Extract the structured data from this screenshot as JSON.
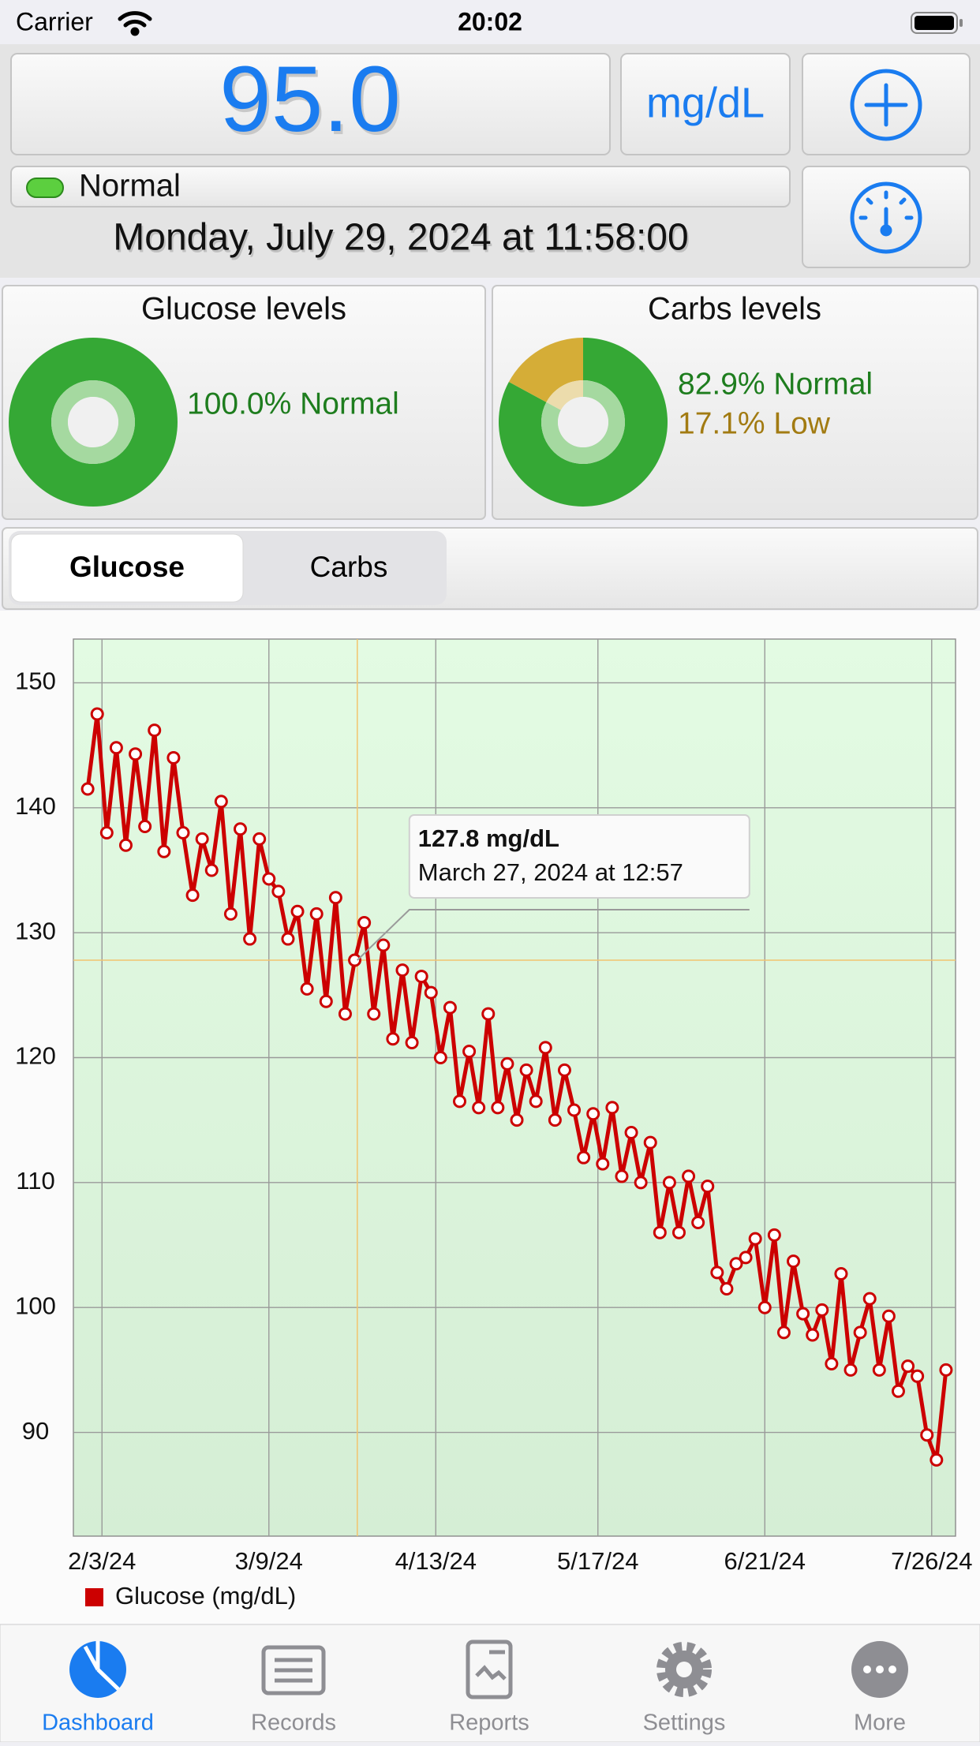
{
  "status_bar": {
    "carrier": "Carrier",
    "time": "20:02"
  },
  "reading": {
    "value": "95.0",
    "unit": "mg/dL",
    "status": "Normal",
    "date": "Monday, July 29, 2024 at 11:58:00"
  },
  "segments": [
    "Glucose",
    "Carbs"
  ],
  "tabs": [
    "Dashboard",
    "Records",
    "Reports",
    "Settings",
    "More"
  ],
  "chart_data": [
    {
      "type": "line",
      "x": [
        "1/31/24",
        "2/2/24",
        "2/4/24",
        "2/6/24",
        "2/8/24",
        "2/10/24",
        "2/12/24",
        "2/14/24",
        "2/16/24",
        "2/18/24",
        "2/20/24",
        "2/22/24",
        "2/24/24",
        "2/26/24",
        "2/28/24",
        "3/1/24",
        "3/3/24",
        "3/5/24",
        "3/7/24",
        "3/9/24",
        "3/11/24",
        "3/13/24",
        "3/15/24",
        "3/17/24",
        "3/19/24",
        "3/21/24",
        "3/23/24",
        "3/25/24",
        "3/27/24",
        "3/29/24",
        "3/31/24",
        "4/2/24",
        "4/4/24",
        "4/6/24",
        "4/8/24",
        "4/10/24",
        "4/12/24",
        "4/14/24",
        "4/16/24",
        "4/18/24",
        "4/20/24",
        "4/22/24",
        "4/24/24",
        "4/26/24",
        "4/28/24",
        "4/30/24",
        "5/2/24",
        "5/4/24",
        "5/6/24",
        "5/8/24",
        "5/10/24",
        "5/12/24",
        "5/14/24",
        "5/16/24",
        "5/18/24",
        "5/20/24",
        "5/22/24",
        "5/24/24",
        "5/26/24",
        "5/28/24",
        "5/30/24",
        "6/1/24",
        "6/3/24",
        "6/5/24",
        "6/7/24",
        "6/9/24",
        "6/11/24",
        "6/13/24",
        "6/15/24",
        "6/17/24",
        "6/19/24",
        "6/21/24",
        "6/23/24",
        "6/25/24",
        "6/27/24",
        "6/29/24",
        "7/1/24",
        "7/3/24",
        "7/5/24",
        "7/7/24",
        "7/9/24",
        "7/11/24",
        "7/13/24",
        "7/15/24",
        "7/17/24",
        "7/19/24",
        "7/21/24",
        "7/23/24",
        "7/25/24",
        "7/27/24",
        "7/29/24"
      ],
      "series": [
        {
          "name": "Glucose (mg/dL)",
          "color": "#cc0000",
          "values": [
            141.5,
            147.5,
            138,
            144.8,
            137,
            144.3,
            138.5,
            146.2,
            136.5,
            144,
            138,
            133,
            137.5,
            135,
            140.5,
            131.5,
            138.3,
            129.5,
            137.5,
            134.3,
            133.3,
            129.5,
            131.7,
            125.5,
            131.5,
            124.5,
            132.8,
            123.5,
            127.8,
            130.8,
            123.5,
            129,
            121.5,
            127,
            121.2,
            126.5,
            125.2,
            120,
            124,
            116.5,
            120.5,
            116,
            123.5,
            116,
            119.5,
            115,
            119,
            116.5,
            120.8,
            115,
            119,
            115.8,
            112,
            115.5,
            111.5,
            116,
            110.5,
            114,
            110,
            113.2,
            106,
            110,
            106,
            110.5,
            106.8,
            109.7,
            102.8,
            101.5,
            103.5,
            104,
            105.5,
            100,
            105.8,
            98,
            103.7,
            99.5,
            97.8,
            99.8,
            95.5,
            102.7,
            95,
            98,
            100.7,
            95,
            99.3,
            93.3,
            95.3,
            94.5,
            89.8,
            87.8,
            95
          ]
        }
      ],
      "xlim": [
        "1/28/24",
        "7/31/24"
      ],
      "xticks": [
        "2/3/24",
        "3/9/24",
        "4/13/24",
        "5/17/24",
        "6/21/24",
        "7/26/24"
      ],
      "ylim": [
        81.7,
        153.5
      ],
      "yticks": [
        90,
        100,
        110,
        120,
        130,
        140,
        150
      ],
      "grid": true,
      "legend": "bottom-left",
      "tooltip": {
        "value": 127.8,
        "label": "127.8 mg/dL",
        "date": "March 27, 2024 at 12:57"
      }
    },
    {
      "type": "pie",
      "title": "Glucose levels",
      "categories": [
        "Normal"
      ],
      "values": [
        100.0
      ],
      "value_labels": [
        "100.0% Normal"
      ],
      "colors": [
        "#35a835"
      ],
      "inner_colors": [
        "#a5d9a0"
      ],
      "label_colors": [
        "#1e7d1e"
      ]
    },
    {
      "type": "pie",
      "title": "Carbs levels",
      "categories": [
        "Normal",
        "Low"
      ],
      "values": [
        82.9,
        17.1
      ],
      "value_labels": [
        "82.9% Normal",
        "17.1% Low"
      ],
      "colors": [
        "#35a835",
        "#d5ad37"
      ],
      "inner_colors": [
        "#a5d9a0",
        "#ecdcac"
      ],
      "label_colors": [
        "#1e7d1e",
        "#a27b12"
      ]
    }
  ]
}
